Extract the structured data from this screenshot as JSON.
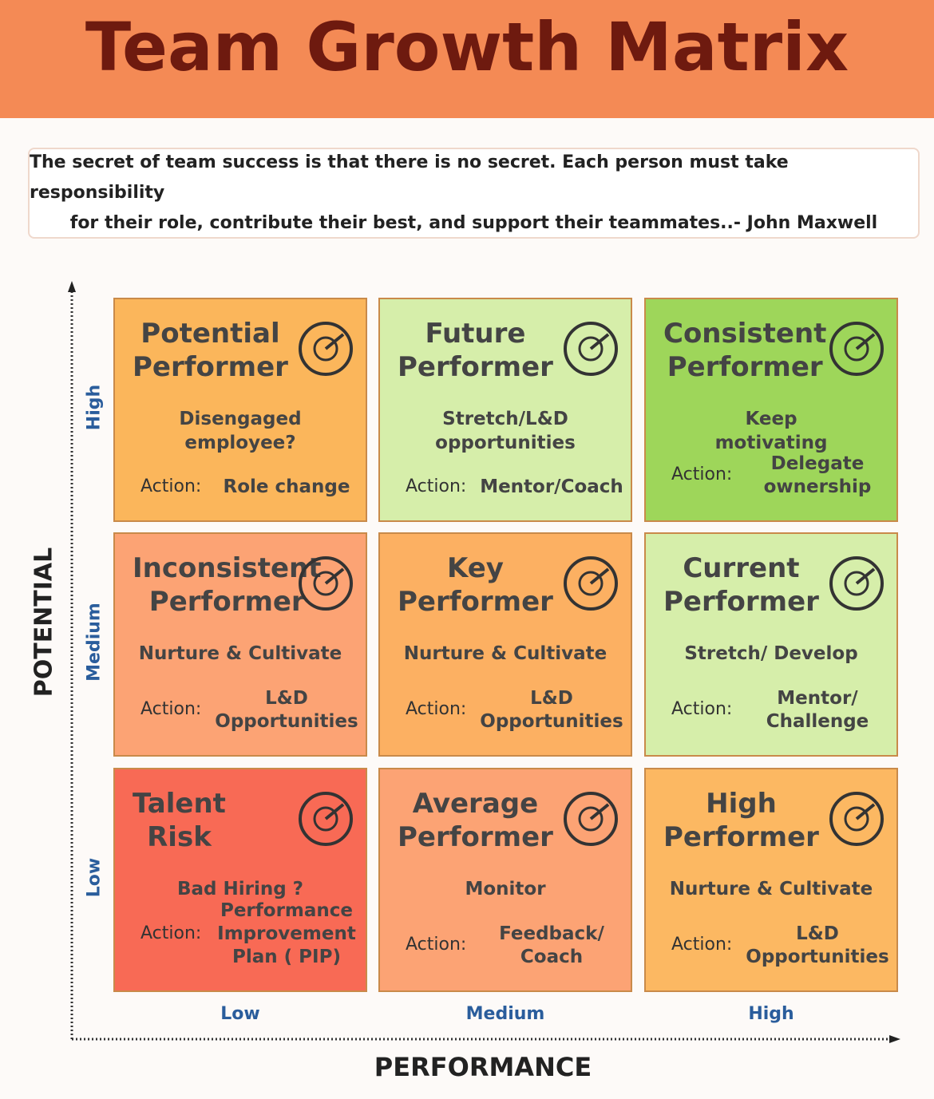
{
  "header": {
    "title": "Team Growth Matrix"
  },
  "quote": [
    "The secret of team success is that there is no secret. Each person must take responsibility",
    "for their role, contribute their best, and support their teammates..- John Maxwell"
  ],
  "y_axis": {
    "label": "POTENTIAL",
    "levels": [
      "High",
      "Medium",
      "Low"
    ]
  },
  "x_axis": {
    "label": "PERFORMANCE",
    "levels": [
      "Low",
      "Medium",
      "High"
    ]
  },
  "cells": [
    {
      "title": [
        "Potential",
        "Performer"
      ],
      "description": [
        "Disengaged",
        "employee?"
      ],
      "action_label": "Action:",
      "action": [
        "Role change"
      ]
    },
    {
      "title": [
        "Future",
        "Performer"
      ],
      "description": [
        "Stretch/L&D",
        "opportunities"
      ],
      "action_label": "Action:",
      "action": [
        "Mentor/Coach"
      ]
    },
    {
      "title": [
        "Consistent",
        "Performer"
      ],
      "description": [
        "Keep",
        "motivating"
      ],
      "action_label": "Action:",
      "action": [
        "Delegate",
        "ownership"
      ]
    },
    {
      "title": [
        "Inconsistent",
        "Performer"
      ],
      "description": [
        "Nurture & Cultivate"
      ],
      "action_label": "Action:",
      "action": [
        "L&D",
        "Opportunities"
      ]
    },
    {
      "title": [
        "Key",
        "Performer"
      ],
      "description": [
        "Nurture & Cultivate"
      ],
      "action_label": "Action:",
      "action": [
        "L&D",
        "Opportunities"
      ]
    },
    {
      "title": [
        "Current",
        "Performer"
      ],
      "description": [
        "Stretch/ Develop"
      ],
      "action_label": "Action:",
      "action": [
        "Mentor/",
        "Challenge"
      ]
    },
    {
      "title": [
        "Talent",
        "Risk"
      ],
      "description": [
        "Bad Hiring ?"
      ],
      "action_label": "Action:",
      "action": [
        "Performance",
        "Improvement",
        "Plan ( PIP)"
      ]
    },
    {
      "title": [
        "Average",
        "Performer"
      ],
      "description": [
        "Monitor"
      ],
      "action_label": "Action:",
      "action": [
        "Feedback/",
        "Coach"
      ]
    },
    {
      "title": [
        "High",
        "Performer"
      ],
      "description": [
        "Nurture & Cultivate"
      ],
      "action_label": "Action:",
      "action": [
        "L&D",
        "Opportunities"
      ]
    }
  ]
}
